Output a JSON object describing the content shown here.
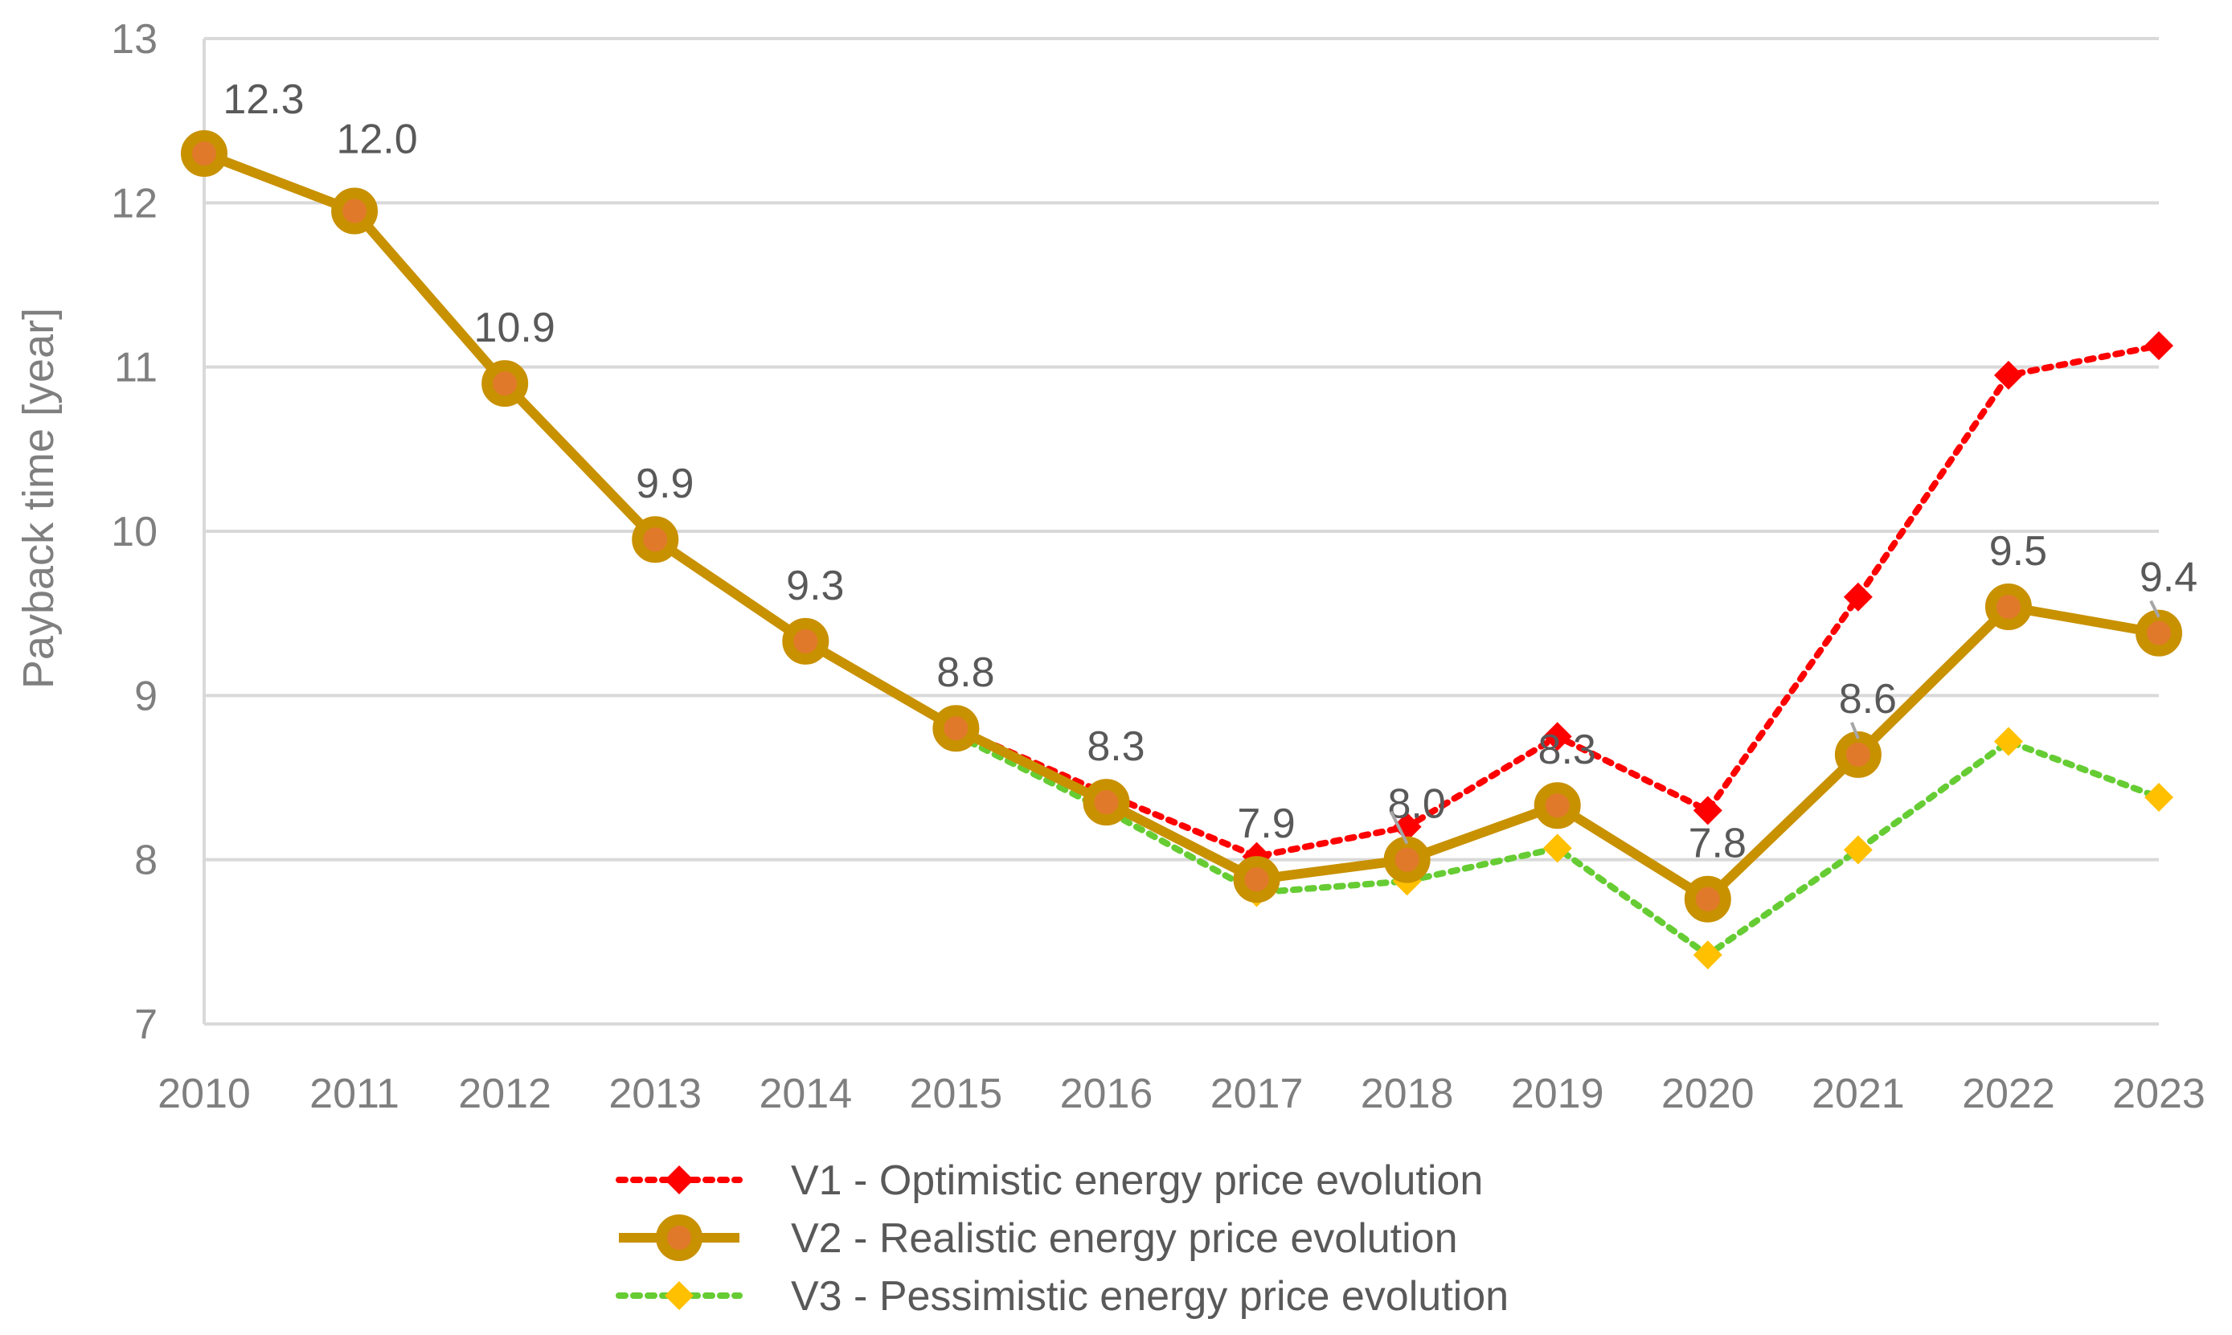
{
  "chart_data": {
    "type": "line",
    "title": "",
    "xlabel": "",
    "ylabel": "Payback time [year]",
    "ylim": [
      7,
      13
    ],
    "yticks": [
      "7",
      "8",
      "9",
      "10",
      "11",
      "12",
      "13"
    ],
    "categories": [
      "2010",
      "2011",
      "2012",
      "2013",
      "2014",
      "2015",
      "2016",
      "2017",
      "2018",
      "2019",
      "2020",
      "2021",
      "2022",
      "2023"
    ],
    "grid": true,
    "legend_position": "bottom",
    "series": [
      {
        "name": "V1 - Optimistic energy price evolution",
        "color": "#ff0000",
        "line": "dotted",
        "marker": "diamond",
        "start_index": 5,
        "values": [
          null,
          null,
          null,
          null,
          null,
          8.8,
          8.4,
          8.02,
          8.2,
          8.75,
          8.3,
          9.6,
          10.95,
          11.13
        ]
      },
      {
        "name": "V2 - Realistic energy price evolution",
        "color": "#c89100",
        "line": "solid",
        "marker": "circle",
        "start_index": 0,
        "values": [
          12.3,
          11.95,
          10.9,
          9.95,
          9.33,
          8.8,
          8.35,
          7.88,
          8.0,
          8.33,
          7.76,
          8.64,
          9.54,
          9.38
        ]
      },
      {
        "name": "V3 - Pessimistic energy price evolution",
        "color": "#66cc33",
        "marker_color": "#ffc000",
        "line": "dotted",
        "marker": "diamond",
        "start_index": 5,
        "values": [
          null,
          null,
          null,
          null,
          null,
          8.76,
          8.3,
          7.8,
          7.87,
          8.07,
          7.42,
          8.06,
          8.72,
          8.38
        ]
      }
    ],
    "data_labels": [
      "12.3",
      "12.0",
      "10.9",
      "9.9",
      "9.3",
      "8.8",
      "8.3",
      "7.9",
      "8.0",
      "8.3",
      "7.8",
      "8.6",
      "9.5",
      "9.4"
    ]
  }
}
